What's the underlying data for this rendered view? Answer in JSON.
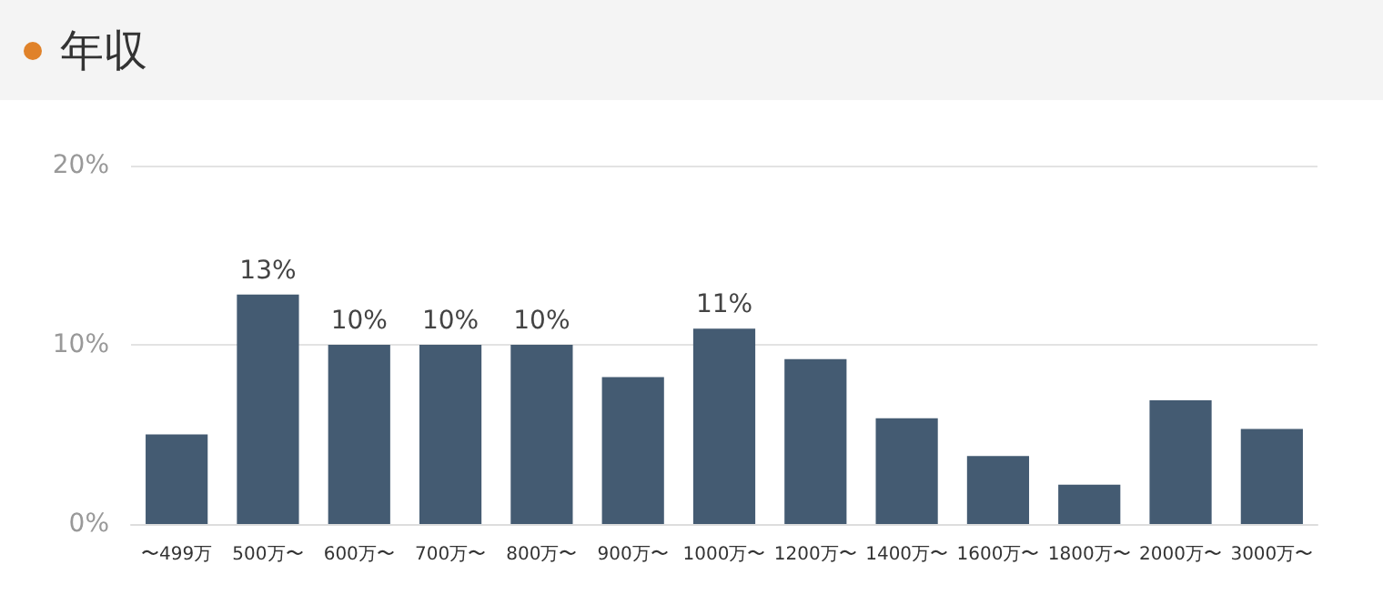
{
  "chart_data": {
    "type": "bar",
    "title": "年収",
    "categories": [
      "〜499万",
      "500万〜",
      "600万〜",
      "700万〜",
      "800万〜",
      "900万〜",
      "1000万〜",
      "1200万〜",
      "1400万〜",
      "1600万〜",
      "1800万〜",
      "2000万〜",
      "3000万〜"
    ],
    "values": [
      5.0,
      12.8,
      10,
      10,
      10,
      8.2,
      10.9,
      9.2,
      5.9,
      3.8,
      2.2,
      6.9,
      5.3
    ],
    "value_labels": [
      null,
      "13%",
      "10%",
      "10%",
      "10%",
      null,
      "11%",
      null,
      null,
      null,
      null,
      null,
      null
    ],
    "color": "#445b72",
    "ylim": [
      0,
      20
    ],
    "yticks": [
      {
        "value": 0,
        "label": "0%"
      },
      {
        "value": 10,
        "label": "10%"
      },
      {
        "value": 20,
        "label": "20%"
      }
    ],
    "grid": "y"
  }
}
